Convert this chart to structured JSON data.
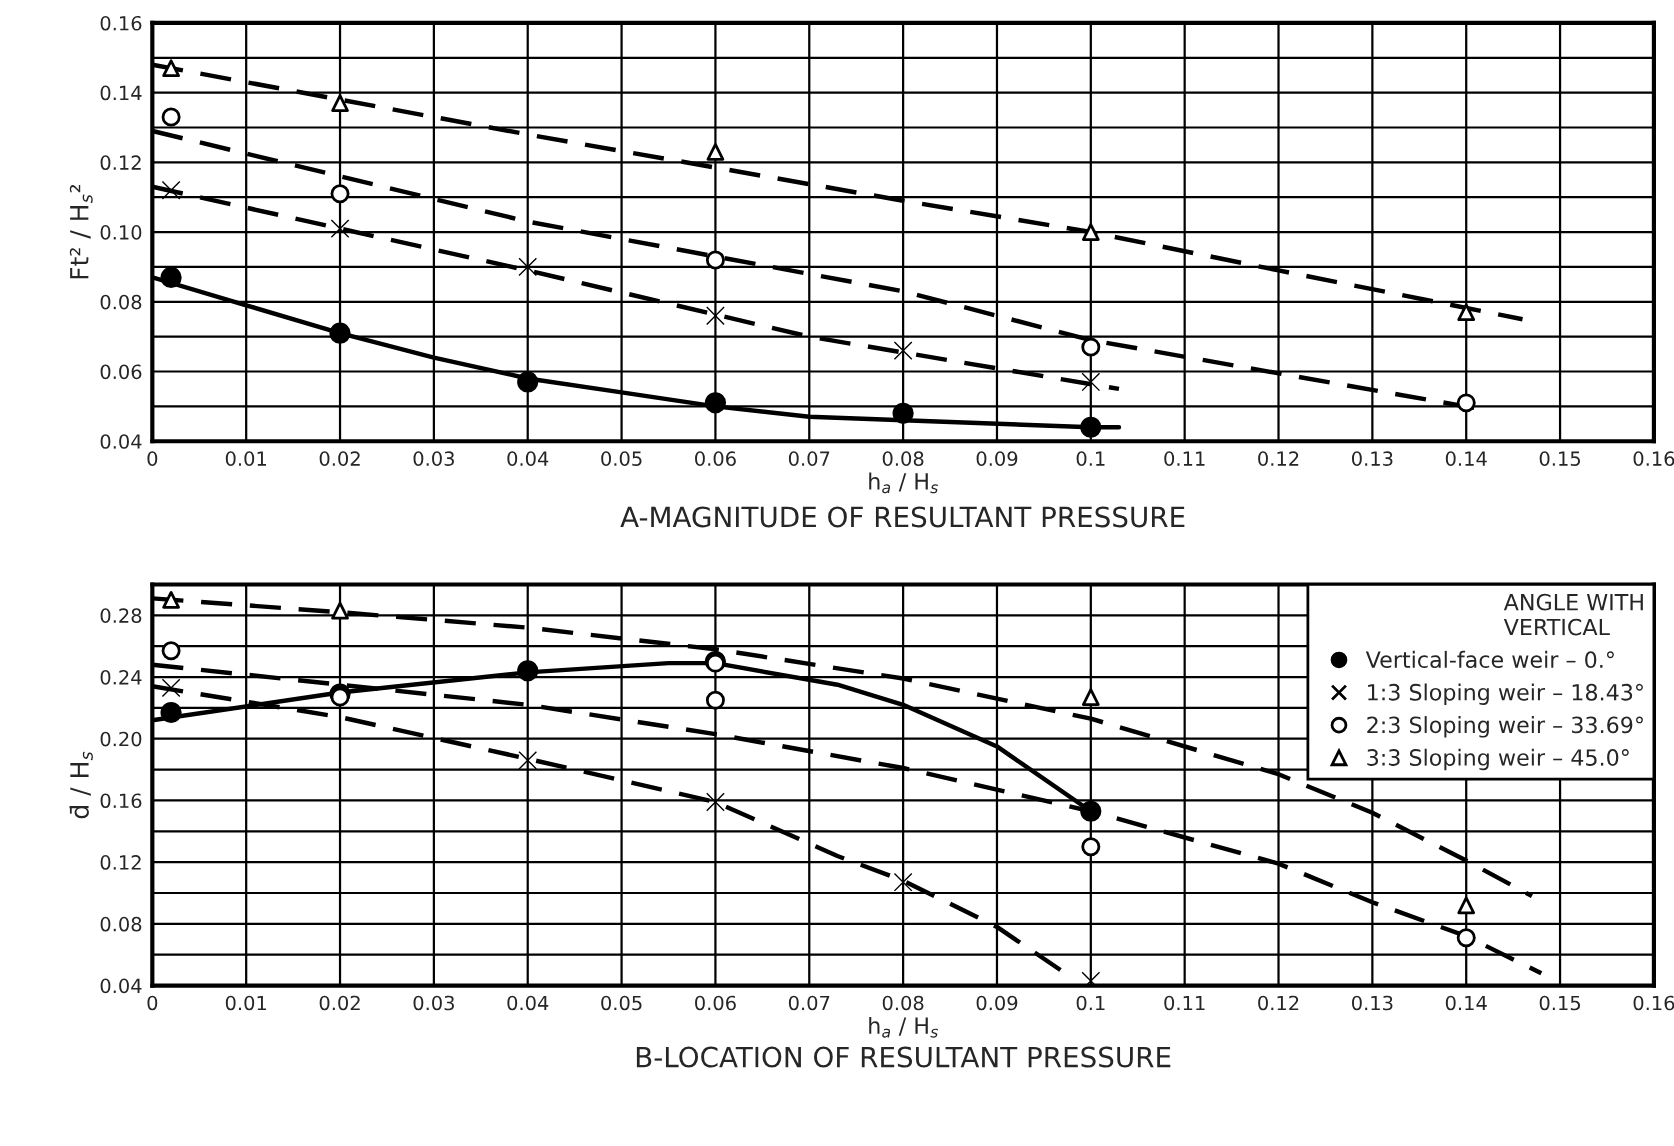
{
  "chart_data": [
    {
      "type": "scatter",
      "title": "A-MAGNITUDE OF RESULTANT PRESSURE",
      "xlabel": "h$_{a}$ / H$_{s}$",
      "ylabel": "Ft² / H$_{s}$²",
      "xlim": [
        0,
        0.16
      ],
      "xticks": [
        0,
        0.01,
        0.02,
        0.03,
        0.04,
        0.05,
        0.06,
        0.07,
        0.08,
        0.09,
        0.1,
        0.11,
        0.12,
        0.13,
        0.14,
        0.15,
        0.16
      ],
      "ylim": [
        0.04,
        0.16
      ],
      "yticks": [
        0.04,
        {
          "value": 0.05,
          "label": null
        },
        0.06,
        {
          "value": 0.07,
          "label": null
        },
        0.08,
        {
          "value": 0.09,
          "label": null
        },
        {
          "value": 0.1,
          "label": "0.10"
        },
        {
          "value": 0.11,
          "label": null
        },
        0.12,
        {
          "value": 0.13,
          "label": null
        },
        0.14,
        {
          "value": 0.15,
          "label": null
        },
        0.16
      ],
      "grid": true,
      "legend": false,
      "series": [
        {
          "marker": "circle",
          "color": "#000000",
          "x": [
            0.002,
            0.02,
            0.04,
            0.06,
            0.08,
            0.1
          ],
          "values": [
            0.087,
            0.071,
            0.057,
            0.051,
            0.048,
            0.044
          ]
        },
        {
          "marker": "cross",
          "color": "#000000",
          "x": [
            0.002,
            0.02,
            0.04,
            0.06,
            0.08,
            0.1
          ],
          "values": [
            0.112,
            0.101,
            0.09,
            0.076,
            0.066,
            0.057
          ]
        },
        {
          "marker": "circle",
          "color": "#ffffff",
          "x": [
            0.002,
            0.02,
            0.06,
            0.1,
            0.14
          ],
          "values": [
            0.133,
            0.111,
            0.092,
            0.067,
            0.051
          ]
        },
        {
          "marker": "triangle",
          "color": "#ffffff",
          "x": [
            0.002,
            0.02,
            0.06,
            0.1,
            0.14
          ],
          "values": [
            0.147,
            0.137,
            0.123,
            0.1,
            0.077
          ]
        },
        {
          "type": "line",
          "line_style": "solid",
          "color": "#000000",
          "x": [
            0,
            0.01,
            0.02,
            0.03,
            0.04,
            0.05,
            0.06,
            0.07,
            0.08,
            0.1,
            0.103
          ],
          "values": [
            0.087,
            0.079,
            0.071,
            0.064,
            0.058,
            0.054,
            0.05,
            0.047,
            0.046,
            0.044,
            0.044
          ]
        },
        {
          "type": "line",
          "line_style": "dashed",
          "color": "#000000",
          "x": [
            0,
            0.04,
            0.07,
            0.103
          ],
          "values": [
            0.113,
            0.089,
            0.07,
            0.055
          ]
        },
        {
          "type": "line",
          "line_style": "dashed",
          "color": "#000000",
          "x": [
            0,
            0.04,
            0.08,
            0.1,
            0.142
          ],
          "values": [
            0.129,
            0.103,
            0.083,
            0.069,
            0.049
          ]
        },
        {
          "type": "line",
          "line_style": "dashed",
          "color": "#000000",
          "x": [
            0,
            0.04,
            0.08,
            0.1,
            0.12,
            0.146
          ],
          "values": [
            0.148,
            0.128,
            0.109,
            0.1,
            0.089,
            0.075
          ]
        }
      ]
    },
    {
      "type": "scatter",
      "title": "B-LOCATION OF RESULTANT PRESSURE",
      "xlabel": "h$_{a}$ / H$_{s}$",
      "ylabel": "d̄ / H$_{s}$",
      "xlim": [
        0,
        0.16
      ],
      "xticks": [
        0,
        0.01,
        0.02,
        0.03,
        0.04,
        0.05,
        0.06,
        0.07,
        0.08,
        0.09,
        0.1,
        0.11,
        0.12,
        0.13,
        0.14,
        0.15,
        0.16
      ],
      "ylim": [
        0.04,
        0.3
      ],
      "yticks": [
        0.04,
        {
          "value": 0.06,
          "label": null
        },
        0.08,
        {
          "value": 0.1,
          "label": null
        },
        0.12,
        {
          "value": 0.14,
          "label": null
        },
        0.16,
        {
          "value": 0.18,
          "label": null
        },
        {
          "value": 0.2,
          "label": "0.20"
        },
        {
          "value": 0.22,
          "label": null
        },
        0.24,
        {
          "value": 0.26,
          "label": null
        },
        0.28,
        {
          "value": 0.3,
          "label": null
        }
      ],
      "grid": true,
      "legend": "top right",
      "legend_title": "ANGLE WITH\nVERTICAL",
      "series": [
        {
          "name": "Vertical-face weir – 0.°",
          "marker": "circle",
          "color": "#000000",
          "x": [
            0.002,
            0.02,
            0.04,
            0.06,
            0.1
          ],
          "values": [
            0.217,
            0.229,
            0.244,
            0.25,
            0.153
          ]
        },
        {
          "name": "1:3 Sloping weir – 18.43°",
          "marker": "cross",
          "color": "#000000",
          "x": [
            0.002,
            0.04,
            0.06,
            0.08,
            0.1
          ],
          "values": [
            0.233,
            0.186,
            0.159,
            0.107,
            0.043
          ]
        },
        {
          "name": "2:3 Sloping weir – 33.69°",
          "marker": "circle",
          "color": "#ffffff",
          "x": [
            0.002,
            0.02,
            0.06,
            0.06,
            0.1,
            0.14
          ],
          "values": [
            0.257,
            0.227,
            0.249,
            0.225,
            0.13,
            0.071
          ]
        },
        {
          "name": "3:3 Sloping weir – 45.0°",
          "marker": "triangle",
          "color": "#ffffff",
          "x": [
            0.002,
            0.02,
            0.1,
            0.14
          ],
          "values": [
            0.29,
            0.283,
            0.227,
            0.092
          ]
        },
        {
          "type": "line",
          "line_style": "solid",
          "color": "#000000",
          "x": [
            0,
            0.02,
            0.04,
            0.055,
            0.06,
            0.073,
            0.08,
            0.09,
            0.1
          ],
          "values": [
            0.212,
            0.23,
            0.243,
            0.249,
            0.249,
            0.235,
            0.222,
            0.195,
            0.153
          ]
        },
        {
          "type": "line",
          "line_style": "dashed",
          "color": "#000000",
          "x": [
            0,
            0.02,
            0.04,
            0.06,
            0.073,
            0.08,
            0.09,
            0.098
          ],
          "values": [
            0.234,
            0.214,
            0.187,
            0.159,
            0.124,
            0.108,
            0.078,
            0.045
          ]
        },
        {
          "type": "line",
          "line_style": "dashed",
          "color": "#000000",
          "x": [
            0,
            0.04,
            0.06,
            0.08,
            0.1,
            0.12,
            0.13,
            0.14,
            0.148
          ],
          "values": [
            0.248,
            0.222,
            0.203,
            0.181,
            0.153,
            0.119,
            0.094,
            0.072,
            0.048
          ]
        },
        {
          "type": "line",
          "line_style": "dashed",
          "color": "#000000",
          "x": [
            0,
            0.02,
            0.04,
            0.06,
            0.08,
            0.1,
            0.12,
            0.13,
            0.14,
            0.147
          ],
          "values": [
            0.291,
            0.282,
            0.272,
            0.258,
            0.239,
            0.213,
            0.177,
            0.152,
            0.121,
            0.098
          ]
        }
      ]
    }
  ]
}
